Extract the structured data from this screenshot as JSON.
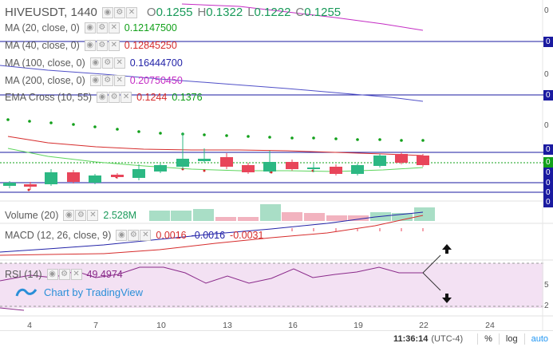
{
  "main": {
    "symbol": "HIVEUSDT, 1440",
    "ohlc": [
      {
        "k": "O",
        "v": "0.1255"
      },
      {
        "k": "H",
        "v": "0.1322"
      },
      {
        "k": "L",
        "v": "0.1222"
      },
      {
        "k": "C",
        "v": "0.1255"
      }
    ]
  },
  "indicators": [
    {
      "label": "MA (20, close, 0)",
      "values": [
        {
          "text": "0.12147500",
          "color": "#12a01a"
        }
      ]
    },
    {
      "label": "MA (40, close, 0)",
      "values": [
        {
          "text": "0.12845250",
          "color": "#d62c2c"
        }
      ]
    },
    {
      "label": "MA (100, close, 0)",
      "values": [
        {
          "text": "0.16444700",
          "color": "#2323a8"
        }
      ]
    },
    {
      "label": "MA (200, close, 0)",
      "values": [
        {
          "text": "0.20750450",
          "color": "#c42cc4"
        }
      ]
    },
    {
      "label": "EMA Cross (10, 55)",
      "values": [
        {
          "text": "0.1244",
          "color": "#d62c2c"
        },
        {
          "text": "0.1376",
          "color": "#12a01a"
        }
      ]
    }
  ],
  "volume": {
    "label": "Volume (20)",
    "value": "2.528M",
    "value_color": "#1a9a5a"
  },
  "macd": {
    "label": "MACD (12, 26, close, 9)",
    "values": [
      {
        "text": "0.0016",
        "color": "#d62c2c"
      },
      {
        "text": "-0.0016",
        "color": "#2323a8"
      },
      {
        "text": "-0.0031",
        "color": "#d62c2c"
      }
    ]
  },
  "rsi": {
    "label": "RSI (14)",
    "value": "49.4974",
    "value_color": "#8a2a8a"
  },
  "branding": {
    "text": "Chart by TradingView"
  },
  "price_axis": {
    "tags": [
      "0",
      "0",
      "0",
      "0",
      "0",
      "0",
      "0",
      "0"
    ],
    "numbers": [
      "0",
      "0",
      "0",
      "5",
      "2"
    ]
  },
  "x_axis": {
    "labels": [
      "4",
      "7",
      "10",
      "13",
      "16",
      "19",
      "22",
      "24"
    ]
  },
  "status_bar": {
    "time": "11:36:14",
    "timezone": "(UTC-4)",
    "percent": "%",
    "log": "log",
    "auto": "auto"
  },
  "colors": {
    "up": "#2cb883",
    "down": "#e8455a",
    "ma20": "#12a01a",
    "ma40": "#d62c2c",
    "ma100": "#2323a8",
    "ma200": "#c42cc4",
    "accent": "#2196f3"
  },
  "icons": [
    "eye-icon",
    "gear-icon",
    "close-icon",
    "tradingview-logo-icon",
    "arrow-up-icon",
    "arrow-down-icon"
  ]
}
